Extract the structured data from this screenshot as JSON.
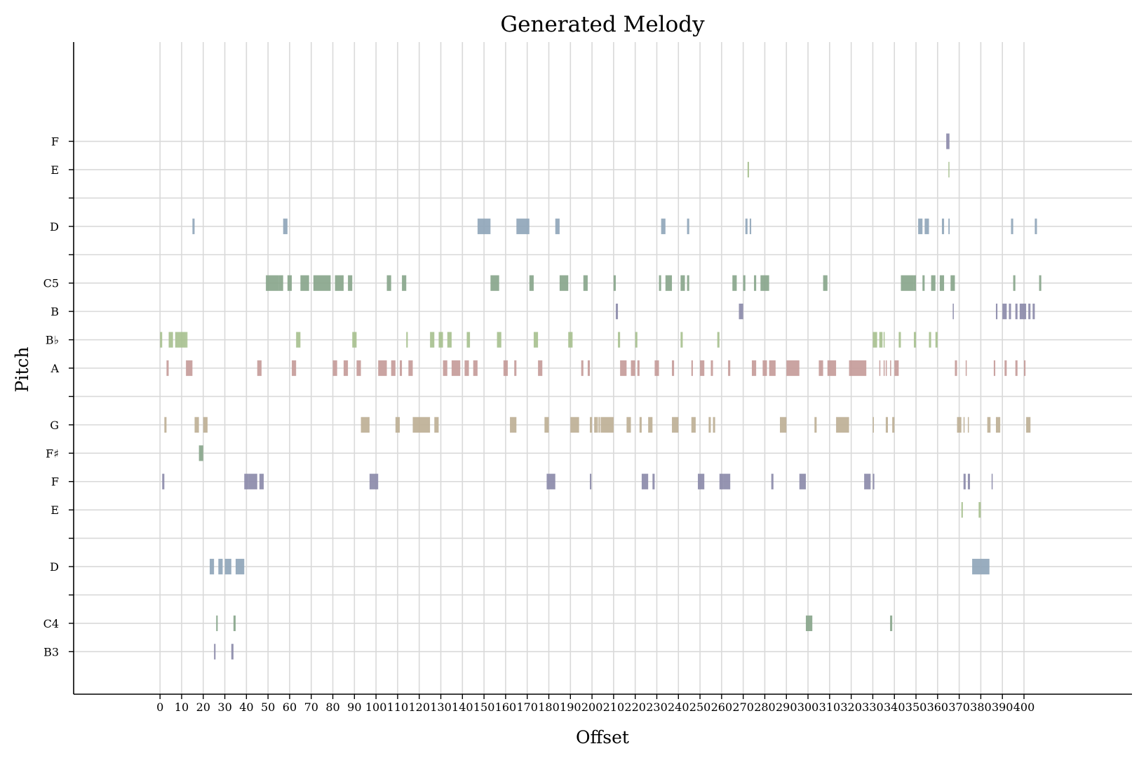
{
  "chart_data": {
    "type": "piano-roll",
    "title": "Generated Melody",
    "xlabel": "Offset",
    "ylabel": "Pitch",
    "xlim": [
      -40,
      450
    ],
    "ylim": [
      57.5,
      80.5
    ],
    "grid": true,
    "x_ticks": [
      0,
      10,
      20,
      30,
      40,
      50,
      60,
      70,
      80,
      90,
      100,
      110,
      120,
      130,
      140,
      150,
      160,
      170,
      180,
      190,
      200,
      210,
      220,
      230,
      240,
      250,
      260,
      270,
      280,
      290,
      300,
      310,
      320,
      330,
      340,
      350,
      360,
      370,
      380,
      390,
      400
    ],
    "y_ticks": [
      {
        "midi": 59,
        "label": "B3"
      },
      {
        "midi": 60,
        "label": "C4"
      },
      {
        "midi": 61,
        "label": ""
      },
      {
        "midi": 62,
        "label": "D"
      },
      {
        "midi": 63,
        "label": ""
      },
      {
        "midi": 64,
        "label": "E"
      },
      {
        "midi": 65,
        "label": "F"
      },
      {
        "midi": 66,
        "label": "F♯"
      },
      {
        "midi": 67,
        "label": "G"
      },
      {
        "midi": 68,
        "label": ""
      },
      {
        "midi": 69,
        "label": "A"
      },
      {
        "midi": 70,
        "label": "B♭"
      },
      {
        "midi": 71,
        "label": "B"
      },
      {
        "midi": 72,
        "label": "C5"
      },
      {
        "midi": 73,
        "label": ""
      },
      {
        "midi": 74,
        "label": "D"
      },
      {
        "midi": 75,
        "label": ""
      },
      {
        "midi": 76,
        "label": "E"
      },
      {
        "midi": 77,
        "label": "F"
      }
    ],
    "pitch_colors": {
      "59": "#8a88a8",
      "60": "#86a48a",
      "62": "#8ea4b8",
      "64": "#a6c08e",
      "65": "#8a88a8",
      "66": "#86a48a",
      "67": "#bcae94",
      "69": "#c49a98",
      "70": "#a6c08e",
      "71": "#8a88a8",
      "72": "#86a48a",
      "74": "#8ea4b8",
      "76": "#a6c08e",
      "77": "#8a88a8"
    },
    "notes": [
      {
        "pitch": 77,
        "notes": [
          [
            364,
            1.5
          ]
        ]
      },
      {
        "pitch": 76,
        "notes": [
          [
            272,
            0.7
          ],
          [
            365,
            0.4
          ]
        ]
      },
      {
        "pitch": 74,
        "notes": [
          [
            15,
            1
          ],
          [
            57,
            2
          ],
          [
            147,
            6
          ],
          [
            165,
            6
          ],
          [
            183,
            2
          ],
          [
            232,
            2
          ],
          [
            244,
            1
          ],
          [
            271,
            1
          ],
          [
            273,
            0.7
          ],
          [
            351,
            2
          ],
          [
            354,
            2
          ],
          [
            362,
            1
          ],
          [
            365,
            0.6
          ],
          [
            394,
            1
          ],
          [
            405,
            1
          ]
        ]
      },
      {
        "pitch": 72,
        "notes": [
          [
            49,
            6
          ],
          [
            55,
            2
          ],
          [
            59,
            2
          ],
          [
            65,
            4
          ],
          [
            71,
            8
          ],
          [
            81,
            4
          ],
          [
            87,
            2
          ],
          [
            105,
            2
          ],
          [
            112,
            2
          ],
          [
            153,
            4
          ],
          [
            171,
            2
          ],
          [
            185,
            4
          ],
          [
            196,
            2
          ],
          [
            210,
            1
          ],
          [
            231,
            1
          ],
          [
            234,
            3
          ],
          [
            241,
            2
          ],
          [
            244,
            1
          ],
          [
            265,
            2
          ],
          [
            270,
            1
          ],
          [
            275,
            1
          ],
          [
            278,
            4
          ],
          [
            307,
            2
          ],
          [
            343,
            6
          ],
          [
            349,
            1
          ],
          [
            353,
            1
          ],
          [
            357,
            2
          ],
          [
            361,
            2
          ],
          [
            366,
            2
          ],
          [
            395,
            1
          ],
          [
            407,
            1
          ]
        ]
      },
      {
        "pitch": 71,
        "notes": [
          [
            211,
            1
          ],
          [
            268,
            2
          ],
          [
            367,
            0.5
          ],
          [
            387,
            0.7
          ],
          [
            390,
            2
          ],
          [
            393,
            1
          ],
          [
            396,
            1
          ],
          [
            398,
            3
          ],
          [
            402,
            1
          ],
          [
            404,
            1
          ]
        ]
      },
      {
        "pitch": 70,
        "notes": [
          [
            0,
            1
          ],
          [
            4,
            2
          ],
          [
            7,
            3
          ],
          [
            10,
            2
          ],
          [
            12,
            0.7
          ],
          [
            63,
            2
          ],
          [
            89,
            2
          ],
          [
            114,
            0.7
          ],
          [
            125,
            2
          ],
          [
            129,
            2
          ],
          [
            133,
            2
          ],
          [
            142,
            1.5
          ],
          [
            156,
            2
          ],
          [
            173,
            2
          ],
          [
            189,
            2
          ],
          [
            212,
            1
          ],
          [
            220,
            1
          ],
          [
            241,
            1
          ],
          [
            258,
            1
          ],
          [
            330,
            2
          ],
          [
            333,
            1.5
          ],
          [
            335,
            0.5
          ],
          [
            342,
            1
          ],
          [
            349,
            1
          ],
          [
            356,
            1
          ],
          [
            359,
            1
          ]
        ]
      },
      {
        "pitch": 69,
        "notes": [
          [
            3,
            1
          ],
          [
            12,
            3
          ],
          [
            45,
            2
          ],
          [
            61,
            2
          ],
          [
            80,
            2
          ],
          [
            85,
            2
          ],
          [
            91,
            2
          ],
          [
            101,
            4
          ],
          [
            107,
            2
          ],
          [
            111,
            1
          ],
          [
            115,
            2
          ],
          [
            131,
            2
          ],
          [
            135,
            4
          ],
          [
            141,
            2
          ],
          [
            145,
            2
          ],
          [
            159,
            2
          ],
          [
            164,
            1
          ],
          [
            175,
            2
          ],
          [
            195,
            1
          ],
          [
            198,
            1
          ],
          [
            213,
            3
          ],
          [
            218,
            2
          ],
          [
            221,
            1
          ],
          [
            229,
            2
          ],
          [
            237,
            1
          ],
          [
            246,
            0.7
          ],
          [
            250,
            2
          ],
          [
            255,
            1
          ],
          [
            263,
            1
          ],
          [
            274,
            2
          ],
          [
            279,
            2
          ],
          [
            282,
            3
          ],
          [
            290,
            6
          ],
          [
            305,
            2
          ],
          [
            309,
            4
          ],
          [
            319,
            8
          ],
          [
            333,
            0.5
          ],
          [
            335,
            0.5
          ],
          [
            336,
            0.5
          ],
          [
            338,
            0.5
          ],
          [
            340,
            2
          ],
          [
            368,
            1
          ],
          [
            373,
            0.5
          ],
          [
            386,
            0.7
          ],
          [
            391,
            1
          ],
          [
            396,
            1
          ],
          [
            400,
            0.7
          ]
        ]
      },
      {
        "pitch": 67,
        "notes": [
          [
            2,
            1
          ],
          [
            16,
            2
          ],
          [
            20,
            2
          ],
          [
            93,
            4
          ],
          [
            109,
            2
          ],
          [
            117,
            8
          ],
          [
            127,
            2
          ],
          [
            162,
            3
          ],
          [
            178,
            2
          ],
          [
            190,
            4
          ],
          [
            199,
            1
          ],
          [
            201,
            1
          ],
          [
            202,
            0.7
          ],
          [
            203,
            0.7
          ],
          [
            204,
            6
          ],
          [
            216,
            2
          ],
          [
            222,
            1
          ],
          [
            226,
            2
          ],
          [
            237,
            3
          ],
          [
            246,
            2
          ],
          [
            254,
            1
          ],
          [
            256,
            1
          ],
          [
            287,
            3
          ],
          [
            303,
            1
          ],
          [
            313,
            6
          ],
          [
            330,
            0.5
          ],
          [
            336,
            1
          ],
          [
            339,
            1
          ],
          [
            369,
            2
          ],
          [
            372,
            0.5
          ],
          [
            374,
            0.4
          ],
          [
            383,
            1.5
          ],
          [
            387,
            2
          ],
          [
            401,
            2
          ]
        ]
      },
      {
        "pitch": 66,
        "notes": [
          [
            18,
            2
          ]
        ]
      },
      {
        "pitch": 65,
        "notes": [
          [
            1,
            1
          ],
          [
            39,
            2
          ],
          [
            41,
            4
          ],
          [
            46,
            2
          ],
          [
            97,
            4
          ],
          [
            179,
            4
          ],
          [
            199,
            0.7
          ],
          [
            223,
            3
          ],
          [
            228,
            1
          ],
          [
            249,
            3
          ],
          [
            259,
            2
          ],
          [
            261,
            3
          ],
          [
            283,
            1
          ],
          [
            296,
            3
          ],
          [
            326,
            3
          ],
          [
            330,
            0.7
          ],
          [
            372,
            1
          ],
          [
            374,
            1
          ],
          [
            385,
            0.5
          ]
        ]
      },
      {
        "pitch": 64,
        "notes": [
          [
            371,
            0.7
          ],
          [
            379,
            1
          ]
        ]
      },
      {
        "pitch": 62,
        "notes": [
          [
            23,
            2
          ],
          [
            27,
            2
          ],
          [
            30,
            3
          ],
          [
            35,
            4
          ],
          [
            376,
            4
          ],
          [
            380,
            4
          ]
        ]
      },
      {
        "pitch": 60,
        "notes": [
          [
            26,
            0.7
          ],
          [
            34,
            1
          ],
          [
            299,
            3
          ],
          [
            338,
            1
          ]
        ]
      },
      {
        "pitch": 59,
        "notes": [
          [
            25,
            0.7
          ],
          [
            33,
            1
          ]
        ]
      }
    ]
  }
}
